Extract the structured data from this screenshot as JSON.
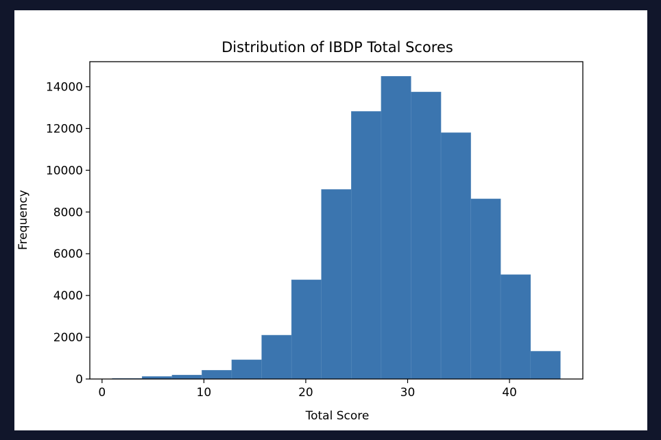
{
  "chart_data": {
    "type": "bar",
    "title": "Distribution of IBDP Total Scores",
    "xlabel": "Total Score",
    "ylabel": "Frequency",
    "xlim": [
      -1.2,
      47.2
    ],
    "ylim": [
      0,
      15200
    ],
    "x_ticks": [
      0,
      10,
      20,
      30,
      40
    ],
    "y_ticks": [
      0,
      2000,
      4000,
      6000,
      8000,
      10000,
      12000,
      14000
    ],
    "bin_edges": [
      1.0,
      3.93,
      6.87,
      9.8,
      12.73,
      15.67,
      18.6,
      21.53,
      24.47,
      27.4,
      30.33,
      33.27,
      36.2,
      39.13,
      42.07,
      45.0
    ],
    "values": [
      30,
      120,
      190,
      420,
      920,
      2100,
      4750,
      9080,
      12820,
      14500,
      13750,
      11800,
      8630,
      5000,
      1330
    ],
    "bar_color": "#3b75af",
    "grid": false,
    "legend": "none"
  }
}
